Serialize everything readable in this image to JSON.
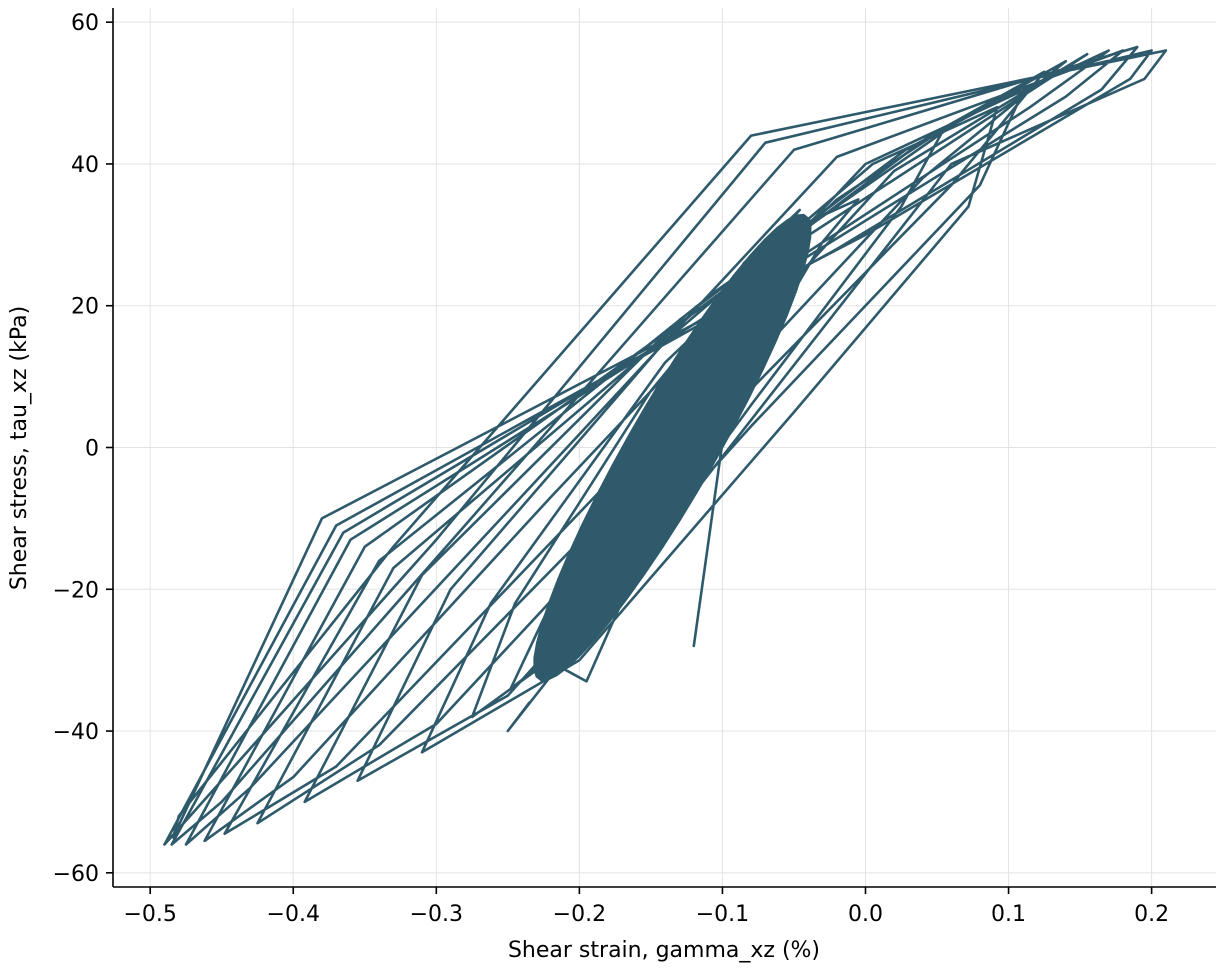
{
  "chart_data": {
    "type": "line",
    "title": "",
    "xlabel": "Shear strain, gamma_xz (%)",
    "ylabel": "Shear stress, tau_xz (kPa)",
    "xlim": [
      -0.526,
      0.245
    ],
    "ylim": [
      -62.0,
      62.0
    ],
    "x_ticks": [
      -0.5,
      -0.4,
      -0.3,
      -0.2,
      -0.1,
      0.0,
      0.1,
      0.2
    ],
    "x_tick_labels": [
      "−0.5",
      "−0.4",
      "−0.3",
      "−0.2",
      "−0.1",
      "0.0",
      "0.1",
      "0.2"
    ],
    "y_ticks": [
      -60,
      -40,
      -20,
      0,
      20,
      40,
      60
    ],
    "y_tick_labels": [
      "−60",
      "−40",
      "−20",
      "0",
      "20",
      "40",
      "60"
    ],
    "grid": true,
    "line_color": "#2e5a6b",
    "series": [
      {
        "x": [
          -0.12,
          -0.095,
          -0.065,
          -0.092,
          -0.128,
          -0.162,
          -0.195,
          -0.213,
          -0.17,
          -0.12,
          -0.075,
          -0.046,
          -0.085,
          -0.15,
          -0.22,
          -0.248,
          -0.19,
          -0.1,
          -0.03,
          -0.005,
          -0.06,
          -0.15,
          -0.245,
          -0.275,
          -0.2,
          -0.08,
          0.025,
          0.055,
          -0.02,
          -0.14,
          -0.262,
          -0.31,
          -0.2,
          -0.05,
          0.072,
          0.092,
          0.005,
          -0.14,
          -0.29,
          -0.355,
          -0.25,
          -0.08,
          0.08,
          0.112,
          0.028,
          -0.13,
          -0.31,
          -0.392,
          -0.3,
          -0.12,
          0.06,
          0.125,
          0.045,
          -0.12,
          -0.33,
          -0.425,
          -0.34,
          -0.15,
          0.04,
          0.14,
          0.065,
          -0.105,
          -0.34,
          -0.448,
          -0.37,
          -0.18,
          0.02,
          0.155,
          0.09,
          -0.085,
          -0.35,
          -0.462,
          -0.4,
          -0.22,
          0.0,
          0.17,
          0.115,
          -0.06,
          -0.36,
          -0.475,
          -0.43,
          -0.25,
          -0.02,
          0.18,
          0.14,
          -0.04,
          -0.365,
          -0.485,
          -0.45,
          -0.28,
          -0.05,
          0.19,
          0.165,
          -0.02,
          -0.37,
          -0.49,
          -0.47,
          -0.3,
          -0.07,
          0.2,
          0.185,
          0.0,
          -0.38,
          -0.484,
          -0.48,
          -0.33,
          -0.08,
          0.21,
          0.195,
          0.06,
          -0.25,
          -0.235
        ],
        "y": [
          -28.0,
          8.0,
          30.0,
          24.0,
          0.0,
          -18.0,
          -33.0,
          -31.0,
          -10.0,
          12.0,
          27.0,
          33.5,
          26.0,
          2.0,
          -22.0,
          -34.0,
          -25.0,
          5.0,
          29.0,
          35.0,
          30.0,
          8.0,
          -22.0,
          -38.0,
          -27.0,
          6.0,
          34.0,
          45.0,
          35.0,
          12.0,
          -22.0,
          -43.0,
          -30.0,
          5.0,
          34.0,
          48.0,
          40.0,
          15.0,
          -20.0,
          -47.0,
          -35.0,
          3.0,
          37.0,
          51.0,
          42.0,
          18.0,
          -18.0,
          -50.0,
          -39.0,
          0.0,
          37.0,
          53.0,
          44.0,
          19.0,
          -17.0,
          -53.0,
          -42.0,
          -3.0,
          38.0,
          54.5,
          46.0,
          22.0,
          -16.0,
          -54.5,
          -45.0,
          -5.0,
          39.0,
          55.5,
          47.0,
          24.0,
          -14.0,
          -55.5,
          -46.5,
          -7.0,
          40.0,
          56.0,
          48.0,
          25.0,
          -13.0,
          -56.0,
          -48.0,
          -9.0,
          41.0,
          56.0,
          49.5,
          27.0,
          -12.0,
          -56.0,
          -50.0,
          -11.0,
          42.0,
          56.5,
          50.5,
          28.0,
          -11.0,
          -56.0,
          -51.5,
          -13.0,
          43.0,
          56.0,
          52.0,
          30.0,
          -10.0,
          -55.0,
          -52.0,
          -14.0,
          44.0,
          56.0,
          52.0,
          40.0,
          -40.0,
          -36.0
        ]
      }
    ]
  }
}
